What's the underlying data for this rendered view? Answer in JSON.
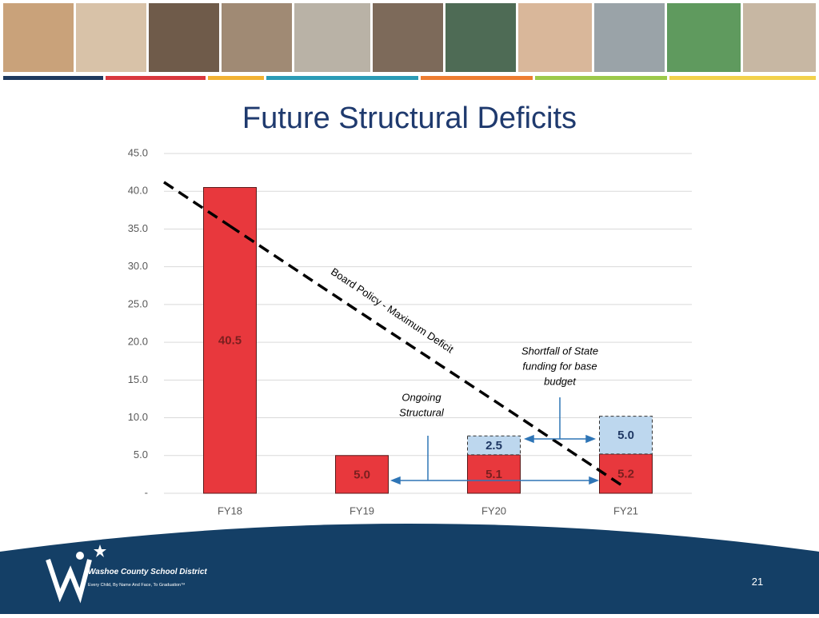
{
  "chart_data": {
    "type": "stacked-bar",
    "title": "Future Structural Deficits",
    "categories": [
      "FY18",
      "FY19",
      "FY20",
      "FY21"
    ],
    "series": [
      {
        "color": "#e8383d",
        "values": [
          40.5,
          5.0,
          5.1,
          5.2
        ],
        "value_labels": [
          "40.5",
          "5.0",
          "5.1",
          "5.2"
        ]
      },
      {
        "color": "#bdd7ee",
        "values": [
          null,
          null,
          2.5,
          5.0
        ],
        "value_labels": [
          null,
          null,
          "2.5",
          "5.0"
        ]
      }
    ],
    "policy_line": {
      "name": "Board Policy - Maximum Deficit",
      "values": [
        35.4,
        23.8,
        12.3,
        0.7
      ]
    },
    "annotations": [
      {
        "lines": [
          "Ongoing",
          "Structural"
        ]
      },
      {
        "lines": [
          "Shortfall of State",
          "funding for base",
          "budget"
        ]
      }
    ],
    "ylim": [
      0,
      45
    ],
    "yticks": [
      {
        "value": 0,
        "label": "-"
      },
      {
        "value": 5,
        "label": "5.0"
      },
      {
        "value": 10,
        "label": "10.0"
      },
      {
        "value": 15,
        "label": "15.0"
      },
      {
        "value": 20,
        "label": "20.0"
      },
      {
        "value": 25,
        "label": "25.0"
      },
      {
        "value": 30,
        "label": "30.0"
      },
      {
        "value": 35,
        "label": "35.0"
      },
      {
        "value": 40,
        "label": "40.0"
      },
      {
        "value": 45,
        "label": "45.0"
      }
    ],
    "grid": true
  },
  "footer": {
    "organization": "Washoe County School District",
    "motto": "Every Child, By Name And Face, To Graduation™",
    "page_number": "21"
  }
}
